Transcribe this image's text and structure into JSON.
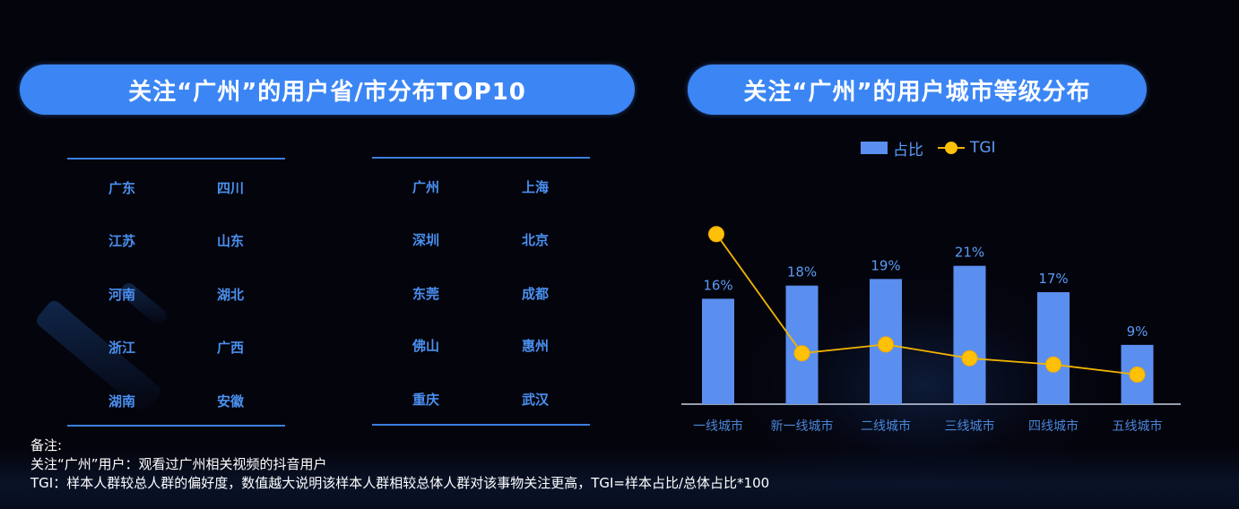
{
  "left_panel": {
    "title": "关注“广州”的用户省/市分布TOP10",
    "provinces": {
      "col1": [
        "广东",
        "江苏",
        "河南",
        "浙江",
        "湖南"
      ],
      "col2": [
        "四川",
        "山东",
        "湖北",
        "广西",
        "安徽"
      ]
    },
    "cities": {
      "col1": [
        "广州",
        "深圳",
        "东莞",
        "佛山",
        "重庆"
      ],
      "col2": [
        "上海",
        "北京",
        "成都",
        "惠州",
        "武汉"
      ]
    }
  },
  "right_panel": {
    "title": "关注“广州”的用户城市等级分布",
    "legend": {
      "bar": "占比",
      "line": "TGI"
    }
  },
  "chart_data": {
    "type": "bar",
    "title": "关注“广州”的用户城市等级分布",
    "categories": [
      "一线城市",
      "新一线城市",
      "二线城市",
      "三线城市",
      "四线城市",
      "五线城市"
    ],
    "series": [
      {
        "name": "占比",
        "type": "bar",
        "values": [
          16,
          18,
          19,
          21,
          17,
          9
        ],
        "labels": [
          "16%",
          "18%",
          "19%",
          "21%",
          "17%",
          "9%"
        ],
        "color": "#5a8ff0"
      },
      {
        "name": "TGI",
        "type": "line",
        "values": [
          190,
          95,
          102,
          91,
          86,
          78
        ],
        "color": "#ffc107",
        "note": "relative marker heights only; no axis shown"
      }
    ],
    "xlabel": "",
    "ylabel": "",
    "grid": false,
    "legend_position": "top"
  },
  "notes": {
    "heading": "备注:",
    "line1": "关注“广州”用户：观看过广州相关视频的抖音用户",
    "line2": "TGI：样本人群较总人群的偏好度，数值越大说明该样本人群相较总体人群对该事物关注更高，TGI=样本占比/总体占比*100"
  },
  "colors": {
    "accent": "#3b86f4",
    "bar": "#5a8ff0",
    "line": "#ffc107",
    "text_blue": "#4a90f0",
    "background": "#04040c"
  }
}
